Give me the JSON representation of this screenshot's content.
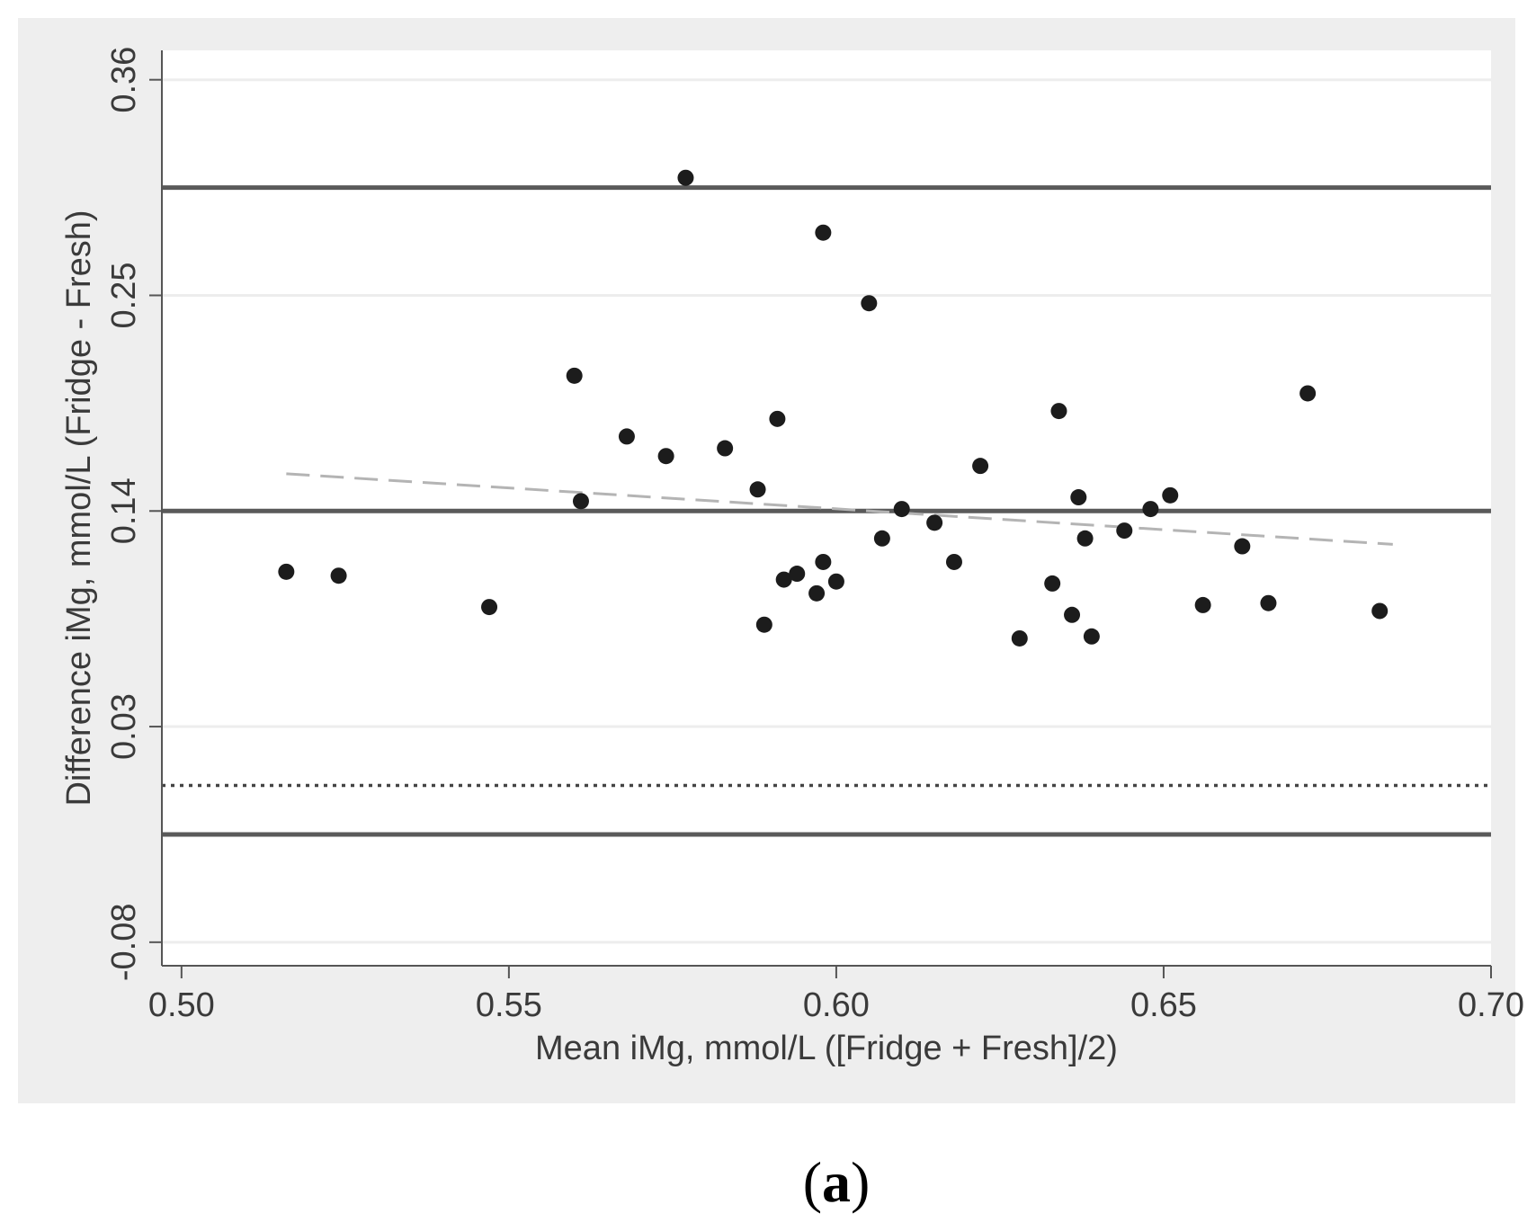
{
  "chart_data": {
    "type": "scatter",
    "panel_label": {
      "open": "(",
      "letter": "a",
      "close": ")"
    },
    "xlabel": "Mean iMg, mmol/L ([Fridge + Fresh]/2)",
    "ylabel": "Difference iMg, mmol/L (Fridge - Fresh)",
    "xlim": [
      0.497,
      0.7
    ],
    "ylim": [
      -0.092,
      0.375
    ],
    "x_ticks": [
      0.5,
      0.55,
      0.6,
      0.65,
      0.7
    ],
    "x_tick_labels": [
      "0.50",
      "0.55",
      "0.60",
      "0.65",
      "0.70"
    ],
    "y_ticks": [
      -0.08,
      0.03,
      0.14,
      0.25,
      0.36
    ],
    "y_tick_labels": [
      "-0.08",
      "0.03",
      "0.14",
      "0.25",
      "0.36"
    ],
    "grid": "horizontal",
    "reference_lines": {
      "upper_limit": 0.305,
      "mean": 0.14,
      "lower_limit": -0.025,
      "zero": 0.0
    },
    "trend_line": {
      "x": [
        0.516,
        0.685
      ],
      "y": [
        0.159,
        0.123
      ]
    },
    "points": [
      {
        "x": 0.516,
        "y": 0.109
      },
      {
        "x": 0.524,
        "y": 0.107
      },
      {
        "x": 0.547,
        "y": 0.091
      },
      {
        "x": 0.56,
        "y": 0.209
      },
      {
        "x": 0.561,
        "y": 0.145
      },
      {
        "x": 0.568,
        "y": 0.178
      },
      {
        "x": 0.574,
        "y": 0.168
      },
      {
        "x": 0.577,
        "y": 0.31
      },
      {
        "x": 0.583,
        "y": 0.172
      },
      {
        "x": 0.588,
        "y": 0.151
      },
      {
        "x": 0.589,
        "y": 0.082
      },
      {
        "x": 0.591,
        "y": 0.187
      },
      {
        "x": 0.592,
        "y": 0.105
      },
      {
        "x": 0.594,
        "y": 0.108
      },
      {
        "x": 0.597,
        "y": 0.098
      },
      {
        "x": 0.598,
        "y": 0.114
      },
      {
        "x": 0.598,
        "y": 0.282
      },
      {
        "x": 0.6,
        "y": 0.104
      },
      {
        "x": 0.605,
        "y": 0.246
      },
      {
        "x": 0.607,
        "y": 0.126
      },
      {
        "x": 0.61,
        "y": 0.141
      },
      {
        "x": 0.615,
        "y": 0.134
      },
      {
        "x": 0.618,
        "y": 0.114
      },
      {
        "x": 0.622,
        "y": 0.163
      },
      {
        "x": 0.628,
        "y": 0.075
      },
      {
        "x": 0.633,
        "y": 0.103
      },
      {
        "x": 0.634,
        "y": 0.191
      },
      {
        "x": 0.636,
        "y": 0.087
      },
      {
        "x": 0.637,
        "y": 0.147
      },
      {
        "x": 0.638,
        "y": 0.126
      },
      {
        "x": 0.639,
        "y": 0.076
      },
      {
        "x": 0.644,
        "y": 0.13
      },
      {
        "x": 0.648,
        "y": 0.141
      },
      {
        "x": 0.651,
        "y": 0.148
      },
      {
        "x": 0.656,
        "y": 0.092
      },
      {
        "x": 0.662,
        "y": 0.122
      },
      {
        "x": 0.666,
        "y": 0.093
      },
      {
        "x": 0.672,
        "y": 0.2
      },
      {
        "x": 0.683,
        "y": 0.089
      }
    ],
    "colors": {
      "outer_background": "#eeeeee",
      "plot_background": "#ffffff",
      "gridline": "#ededed",
      "reference_line": "#5a5a5a",
      "axis": "#555555",
      "point": "#1c1c1c",
      "trend_line": "#b4b4b4",
      "zero_line": "#444444"
    }
  }
}
